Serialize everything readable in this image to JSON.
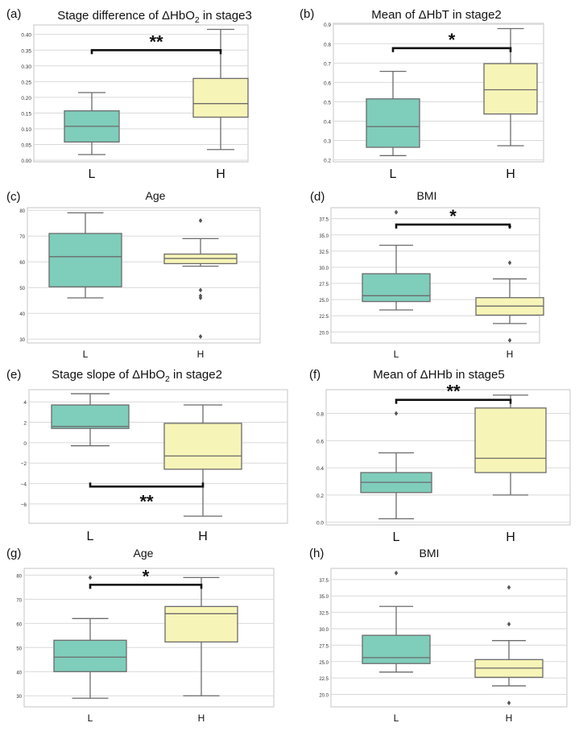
{
  "chart_data": [
    {
      "type": "box",
      "panel_label": "(a)",
      "title_main": "Stage difference of ΔHbO",
      "title_sub": "2",
      "title_tail": " in stage3",
      "categories": [
        "L",
        "H"
      ],
      "yticks": [
        0.0,
        0.05,
        0.1,
        0.15,
        0.2,
        0.25,
        0.3,
        0.35,
        0.4
      ],
      "ytick_labels": [
        "0.00",
        "0.05",
        "0.10",
        "0.15",
        "0.20",
        "0.25",
        "0.30",
        "0.35",
        "0.40"
      ],
      "ylim": [
        -0.005,
        0.43
      ],
      "boxes": [
        {
          "whislo": 0.018,
          "q1": 0.058,
          "med": 0.108,
          "q3": 0.157,
          "whishi": 0.215,
          "fliers": []
        },
        {
          "whislo": 0.034,
          "q1": 0.137,
          "med": 0.18,
          "q3": 0.26,
          "whishi": 0.416,
          "fliers": []
        }
      ],
      "significance": {
        "label": "**",
        "level": 0.35,
        "placement": "above"
      }
    },
    {
      "type": "box",
      "panel_label": "(b)",
      "title_main": "Mean of ΔHbT in stage2",
      "title_sub": "",
      "title_tail": "",
      "categories": [
        "L",
        "H"
      ],
      "yticks": [
        0.2,
        0.3,
        0.4,
        0.5,
        0.6,
        0.7,
        0.8,
        0.9
      ],
      "ytick_labels": [
        "0.2",
        "0.3",
        "0.4",
        "0.5",
        "0.6",
        "0.7",
        "0.8",
        "0.9"
      ],
      "ylim": [
        0.19,
        0.905
      ],
      "boxes": [
        {
          "whislo": 0.222,
          "q1": 0.265,
          "med": 0.372,
          "q3": 0.515,
          "whishi": 0.657,
          "fliers": []
        },
        {
          "whislo": 0.273,
          "q1": 0.437,
          "med": 0.562,
          "q3": 0.697,
          "whishi": 0.878,
          "fliers": []
        }
      ],
      "significance": {
        "label": "*",
        "level": 0.777,
        "placement": "above"
      }
    },
    {
      "type": "box",
      "panel_label": "(c)",
      "title_main": "Age",
      "title_sub": "",
      "title_tail": "",
      "categories": [
        "L",
        "H"
      ],
      "yticks": [
        30,
        40,
        50,
        60,
        70,
        80
      ],
      "ytick_labels": [
        "30",
        "40",
        "50",
        "60",
        "70",
        "80"
      ],
      "ylim": [
        28.5,
        81
      ],
      "boxes": [
        {
          "whislo": 46,
          "q1": 50.3,
          "med": 62,
          "q3": 71,
          "whishi": 79,
          "fliers": []
        },
        {
          "whislo": 58.3,
          "q1": 59.3,
          "med": 61.3,
          "q3": 63,
          "whishi": 69,
          "fliers": [
            76,
            49,
            46.8,
            46,
            31
          ]
        }
      ],
      "significance": null
    },
    {
      "type": "box",
      "panel_label": "(d)",
      "title_main": "BMI",
      "title_sub": "",
      "title_tail": "",
      "categories": [
        "L",
        "H"
      ],
      "yticks": [
        20.0,
        22.5,
        25.0,
        27.5,
        30.0,
        32.5,
        35.0,
        37.5
      ],
      "ytick_labels": [
        "20.0",
        "22.5",
        "25.0",
        "27.5",
        "30.0",
        "32.5",
        "35.0",
        "37.5"
      ],
      "ylim": [
        18.3,
        39.2
      ],
      "boxes": [
        {
          "whislo": 23.4,
          "q1": 24.7,
          "med": 25.6,
          "q3": 29.0,
          "whishi": 33.4,
          "fliers": [
            38.5
          ]
        },
        {
          "whislo": 21.3,
          "q1": 22.6,
          "med": 24.0,
          "q3": 25.3,
          "whishi": 28.2,
          "fliers": [
            36.3,
            30.7,
            18.7
          ]
        }
      ],
      "significance": {
        "label": "*",
        "level": 36.6,
        "placement": "above"
      }
    },
    {
      "type": "box",
      "panel_label": "(e)",
      "title_main": "Stage slope of ΔHbO",
      "title_sub": "2",
      "title_tail": " in stage2",
      "categories": [
        "L",
        "H"
      ],
      "yticks": [
        -6,
        -4,
        -2,
        0,
        2,
        4
      ],
      "ytick_labels": [
        "−6",
        "−4",
        "−2",
        "0",
        "2",
        "4"
      ],
      "ylim": [
        -7.9,
        5.2
      ],
      "boxes": [
        {
          "whislo": -0.3,
          "q1": 1.4,
          "med": 1.6,
          "q3": 3.7,
          "whishi": 4.8,
          "fliers": []
        },
        {
          "whislo": -7.2,
          "q1": -2.6,
          "med": -1.3,
          "q3": 1.9,
          "whishi": 3.7,
          "fliers": []
        }
      ],
      "significance": {
        "label": "**",
        "level": -4.3,
        "placement": "below"
      }
    },
    {
      "type": "box",
      "panel_label": "(f)",
      "title_main": "Mean of ΔHHb in stage5",
      "title_sub": "",
      "title_tail": "",
      "categories": [
        "L",
        "H"
      ],
      "yticks": [
        0.0,
        0.2,
        0.4,
        0.6,
        0.8
      ],
      "ytick_labels": [
        "0.0",
        "0.2",
        "0.4",
        "0.6",
        "0.8"
      ],
      "ylim": [
        -0.02,
        0.975
      ],
      "boxes": [
        {
          "whislo": 0.025,
          "q1": 0.218,
          "med": 0.293,
          "q3": 0.365,
          "whishi": 0.51,
          "fliers": [
            0.8
          ]
        },
        {
          "whislo": 0.2,
          "q1": 0.365,
          "med": 0.47,
          "q3": 0.84,
          "whishi": 0.935,
          "fliers": []
        }
      ],
      "significance": {
        "label": "**",
        "level": 0.9,
        "placement": "above"
      }
    },
    {
      "type": "box",
      "panel_label": "(g)",
      "title_main": "Age",
      "title_sub": "",
      "title_tail": "",
      "categories": [
        "L",
        "H"
      ],
      "yticks": [
        30,
        40,
        50,
        60,
        70,
        80
      ],
      "ytick_labels": [
        "30",
        "40",
        "50",
        "60",
        "70",
        "80"
      ],
      "ylim": [
        25.4,
        82.8
      ],
      "boxes": [
        {
          "whislo": 29,
          "q1": 40,
          "med": 46,
          "q3": 53,
          "whishi": 62,
          "fliers": [
            79
          ]
        },
        {
          "whislo": 30,
          "q1": 52.3,
          "med": 64,
          "q3": 67,
          "whishi": 79,
          "fliers": []
        }
      ],
      "significance": {
        "label": "*",
        "level": 76,
        "placement": "above"
      }
    },
    {
      "type": "box",
      "panel_label": "(h)",
      "title_main": "BMI",
      "title_sub": "",
      "title_tail": "",
      "categories": [
        "L",
        "H"
      ],
      "yticks": [
        20.0,
        22.5,
        25.0,
        27.5,
        30.0,
        32.5,
        35.0,
        37.5
      ],
      "ytick_labels": [
        "20.0",
        "22.5",
        "25.0",
        "27.5",
        "30.0",
        "32.5",
        "35.0",
        "37.5"
      ],
      "ylim": [
        18.1,
        39.2
      ],
      "boxes": [
        {
          "whislo": 23.4,
          "q1": 24.7,
          "med": 25.6,
          "q3": 29.0,
          "whishi": 33.4,
          "fliers": [
            38.5
          ]
        },
        {
          "whislo": 21.3,
          "q1": 22.6,
          "med": 24.0,
          "q3": 25.3,
          "whishi": 28.2,
          "fliers": [
            36.3,
            30.7,
            18.7
          ]
        }
      ],
      "significance": null
    }
  ],
  "colors": {
    "L": "#7fcdbb",
    "H": "#f7f4b7",
    "box_edge": "#6b6b6b",
    "grid": "#d9d9d9",
    "frame": "#c6c6c6",
    "bracket": "#111111"
  }
}
